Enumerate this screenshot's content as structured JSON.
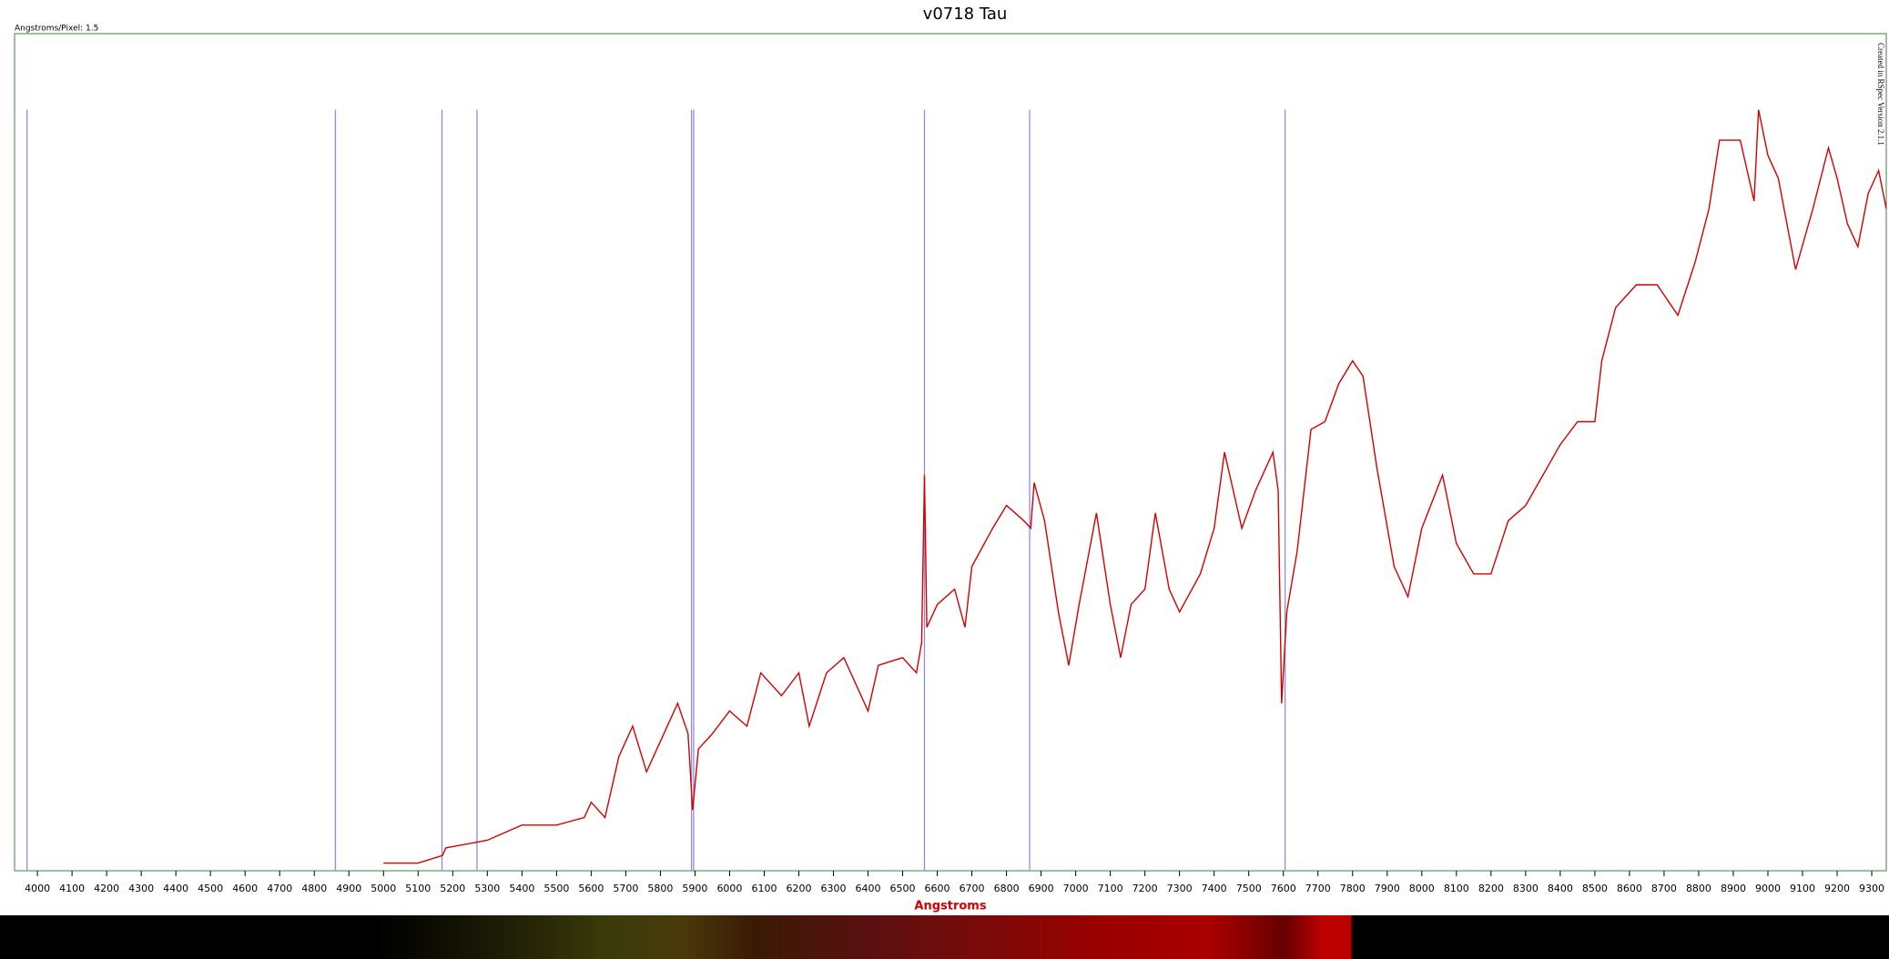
{
  "chart_data": {
    "type": "line",
    "title": "v0718 Tau",
    "subtitle": "Angstroms/Pixel: 1.5",
    "annotation": "Created in RSpec Version 2.1.1",
    "x_label": "Angstroms",
    "xlim": [
      3934,
      9342
    ],
    "ylim": [
      0,
      1.1
    ],
    "xticks": [
      4000,
      4100,
      4200,
      4300,
      4400,
      4500,
      4600,
      4700,
      4800,
      4900,
      5000,
      5100,
      5200,
      5300,
      5400,
      5500,
      5600,
      5700,
      5800,
      5900,
      6000,
      6100,
      6200,
      6300,
      6400,
      6500,
      6600,
      6700,
      6800,
      6900,
      7000,
      7100,
      7200,
      7300,
      7400,
      7500,
      7600,
      7700,
      7800,
      7900,
      8000,
      8100,
      8200,
      8300,
      8400,
      8500,
      8600,
      8700,
      8800,
      8900,
      9000,
      9100,
      9200,
      9300
    ],
    "reference_lines": {
      "color": "#8c8ce6",
      "x": [
        3970,
        4861,
        5169,
        5270,
        5890,
        5896,
        6563,
        6867,
        7605
      ]
    },
    "series": [
      {
        "color": "#d40000",
        "x": [
          5000,
          5100,
          5170,
          5180,
          5300,
          5400,
          5500,
          5580,
          5600,
          5640,
          5680,
          5720,
          5760,
          5800,
          5850,
          5880,
          5893,
          5910,
          5950,
          6000,
          6050,
          6090,
          6150,
          6200,
          6230,
          6280,
          6330,
          6400,
          6430,
          6500,
          6540,
          6555,
          6563,
          6570,
          6600,
          6650,
          6680,
          6700,
          6760,
          6800,
          6850,
          6870,
          6880,
          6910,
          6950,
          6980,
          7010,
          7060,
          7100,
          7130,
          7160,
          7200,
          7230,
          7270,
          7300,
          7360,
          7400,
          7430,
          7480,
          7520,
          7570,
          7585,
          7595,
          7610,
          7640,
          7680,
          7720,
          7760,
          7800,
          7830,
          7870,
          7920,
          7960,
          8000,
          8060,
          8100,
          8150,
          8200,
          8250,
          8300,
          8350,
          8400,
          8450,
          8500,
          8520,
          8560,
          8620,
          8680,
          8740,
          8790,
          8830,
          8860,
          8920,
          8960,
          8973,
          9000,
          9030,
          9080,
          9130,
          9175,
          9200,
          9230,
          9260,
          9290,
          9320,
          9342
        ],
        "values": [
          0.01,
          0.01,
          0.02,
          0.03,
          0.04,
          0.06,
          0.06,
          0.07,
          0.09,
          0.07,
          0.15,
          0.19,
          0.13,
          0.17,
          0.22,
          0.18,
          0.08,
          0.16,
          0.18,
          0.21,
          0.19,
          0.26,
          0.23,
          0.26,
          0.19,
          0.26,
          0.28,
          0.21,
          0.27,
          0.28,
          0.26,
          0.3,
          0.52,
          0.32,
          0.35,
          0.37,
          0.32,
          0.4,
          0.45,
          0.48,
          0.46,
          0.45,
          0.51,
          0.46,
          0.34,
          0.27,
          0.35,
          0.47,
          0.35,
          0.28,
          0.35,
          0.37,
          0.47,
          0.37,
          0.34,
          0.39,
          0.45,
          0.55,
          0.45,
          0.5,
          0.55,
          0.5,
          0.22,
          0.34,
          0.42,
          0.58,
          0.59,
          0.64,
          0.67,
          0.65,
          0.53,
          0.4,
          0.36,
          0.45,
          0.52,
          0.43,
          0.39,
          0.39,
          0.46,
          0.48,
          0.52,
          0.56,
          0.59,
          0.59,
          0.67,
          0.74,
          0.77,
          0.77,
          0.73,
          0.8,
          0.87,
          0.96,
          0.96,
          0.88,
          1.0,
          0.94,
          0.91,
          0.79,
          0.87,
          0.95,
          0.91,
          0.85,
          0.82,
          0.89,
          0.92,
          0.87
        ]
      }
    ]
  }
}
